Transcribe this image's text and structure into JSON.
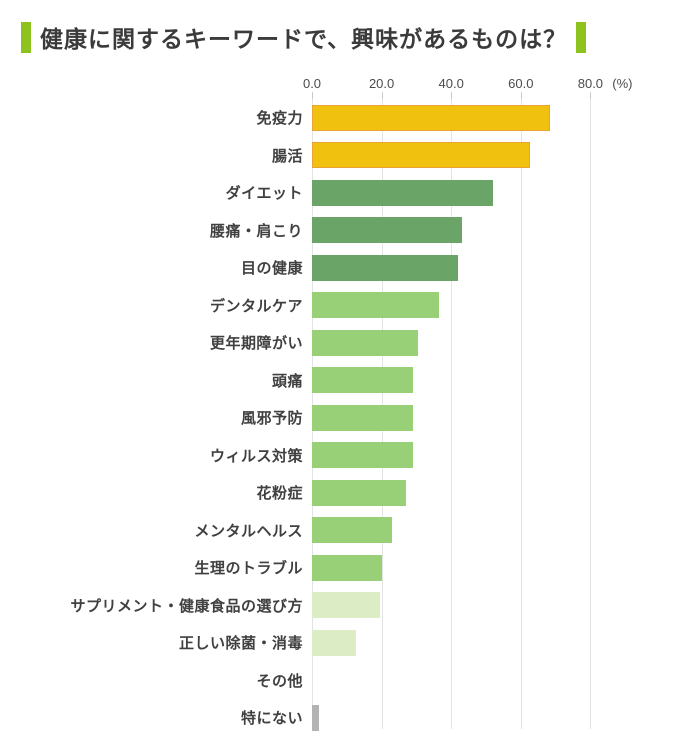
{
  "title": {
    "text": "健康に関するキーワードで、興味があるものは？"
  },
  "axis": {
    "tick_labels": [
      "0.0",
      "20.0",
      "40.0",
      "60.0",
      "80.0"
    ],
    "tick_values": [
      0,
      20,
      40,
      60,
      80
    ],
    "unit_label": "(%)",
    "max": 100
  },
  "palette": {
    "yellow": "#f0c10e",
    "yellow_border": "#e8a337",
    "green_dark": "#6aa466",
    "green_light": "#97d077",
    "green_pale": "#dcedc6",
    "gray": "#b3b3b3",
    "accent_green": "#8dc21f",
    "gridline": "#e3e3e3"
  },
  "chart_data": {
    "type": "bar",
    "orientation": "horizontal",
    "title": "健康に関するキーワードで、興味があるものは？",
    "xlabel": "(%)",
    "xlim": [
      0,
      100
    ],
    "xticks": [
      0,
      20,
      40,
      60,
      80
    ],
    "grid": true,
    "legend": false,
    "categories": [
      "免疫力",
      "腸活",
      "ダイエット",
      "腰痛・肩こり",
      "目の健康",
      "デンタルケア",
      "更年期障がい",
      "頭痛",
      "風邪予防",
      "ウィルス対策",
      "花粉症",
      "メンタルヘルス",
      "生理のトラブル",
      "サプリメント・健康食品の選び方",
      "正しい除菌・消毒",
      "その他",
      "特にない"
    ],
    "values": [
      68.5,
      62.5,
      52,
      43,
      42,
      36.5,
      30.5,
      29,
      29,
      29,
      27,
      23,
      20,
      19.5,
      12.5,
      0,
      2
    ],
    "bar_colors": [
      "yellow",
      "yellow",
      "green_dark",
      "green_dark",
      "green_dark",
      "green_light",
      "green_light",
      "green_light",
      "green_light",
      "green_light",
      "green_light",
      "green_light",
      "green_light",
      "green_pale",
      "green_pale",
      "green_pale",
      "gray"
    ]
  }
}
